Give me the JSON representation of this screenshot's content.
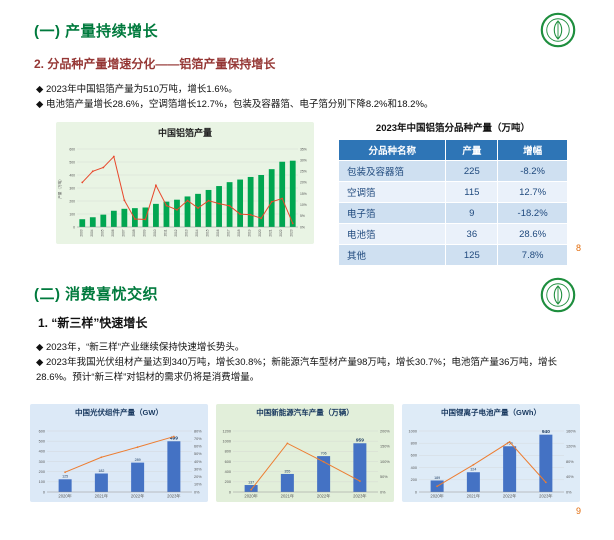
{
  "slide1": {
    "title": "(一) 产量持续增长",
    "subtitle": "2. 分品种产量增速分化——铝箔产量保持增长",
    "bullets": [
      "◆ 2023年中国铝箔产量为510万吨，增长1.6%。",
      "◆ 电池箔产量增长28.6%，空调箔增长12.7%，包装及容器箔、电子箔分别下降8.2%和18.2%。"
    ],
    "table": {
      "title": "2023年中国铝箔分品种产量（万吨）",
      "headers": [
        "分品种名称",
        "产量",
        "增幅"
      ],
      "rows": [
        [
          "包装及容器箔",
          "225",
          "-8.2%"
        ],
        [
          "空调箔",
          "115",
          "12.7%"
        ],
        [
          "电子箔",
          "9",
          "-18.2%"
        ],
        [
          "电池箔",
          "36",
          "28.6%"
        ],
        [
          "其他",
          "125",
          "7.8%"
        ]
      ]
    },
    "page_number": "8"
  },
  "slide2": {
    "title": "(二) 消费喜忧交织",
    "subtitle": "1. “新三样”快速增长",
    "bullets": [
      "◆ 2023年，“新三样”产业继续保持快速增长势头。",
      "◆ 2023年我国光伏组材产量达到340万吨，增长30.8%；新能源汽车型材产量98万吨，增长30.7%；电池箔产量36万吨，增长28.6%。预计“新三样”对铝材的需求仍将是消费增量。"
    ],
    "page_number": "9"
  },
  "chart_data": [
    {
      "type": "bar",
      "title": "中国铝箔产量",
      "categories": [
        "2003",
        "2004",
        "2005",
        "2006",
        "2007",
        "2008",
        "2009",
        "2010",
        "2011",
        "2012",
        "2013",
        "2014",
        "2015",
        "2016",
        "2017",
        "2018",
        "2019",
        "2020",
        "2021",
        "2022",
        "2023"
      ],
      "series": [
        {
          "name": "产量",
          "type": "bar",
          "values": [
            60,
            75,
            95,
            125,
            140,
            145,
            150,
            178,
            195,
            210,
            235,
            255,
            285,
            315,
            345,
            365,
            385,
            400,
            445,
            502,
            510
          ]
        },
        {
          "name": "增速",
          "type": "line",
          "values": [
            20,
            25,
            26.7,
            31.6,
            12,
            3.6,
            3.4,
            18.7,
            9.6,
            7.7,
            11.9,
            8.5,
            11.8,
            10.5,
            9.5,
            5.8,
            5.5,
            3.9,
            11.3,
            12.8,
            1.6
          ]
        }
      ],
      "ylabel_left": "产量（万吨）",
      "left_axis": {
        "min": 0,
        "max": 600,
        "step": 100
      },
      "right_axis": {
        "min": 0,
        "max": 35,
        "step": 5
      },
      "rotate_x_labels": true,
      "show_bar_labels": false,
      "bar_color": "#00A651",
      "line_color": "#E8482C",
      "bg_color": "#E9F4E4",
      "legend_position": "none",
      "grid": true
    },
    {
      "type": "bar",
      "title": "中国光伏组件产量（GW）",
      "categories": [
        "2020年",
        "2021年",
        "2022年",
        "2023年"
      ],
      "series": [
        {
          "name": "产量",
          "type": "bar",
          "values": [
            125,
            182,
            289,
            499
          ]
        },
        {
          "name": "增速",
          "type": "line",
          "values": [
            26,
            45.6,
            58.8,
            72.7
          ]
        }
      ],
      "left_axis": {
        "min": 0,
        "max": 600,
        "step": 100
      },
      "right_axis": {
        "min": 0,
        "max": 80,
        "step": 10
      },
      "rotate_x_labels": false,
      "show_bar_labels": true,
      "bar_color": "#4472C4",
      "line_color": "#ED7D31",
      "bg_color": "#DCE9F7",
      "legend_position": "none",
      "grid": true
    },
    {
      "type": "bar",
      "title": "中国新能源汽车产量（万辆）",
      "categories": [
        "2020年",
        "2021年",
        "2022年",
        "2023年"
      ],
      "series": [
        {
          "name": "产量",
          "type": "bar",
          "values": [
            137,
            355,
            706,
            959
          ]
        },
        {
          "name": "增速",
          "type": "line",
          "values": [
            7.5,
            159.5,
            99.1,
            35.8
          ]
        }
      ],
      "left_axis": {
        "min": 0,
        "max": 1200,
        "step": 200
      },
      "right_axis": {
        "min": 0,
        "max": 200,
        "step": 50
      },
      "rotate_x_labels": false,
      "show_bar_labels": true,
      "bar_color": "#4472C4",
      "line_color": "#ED7D31",
      "bg_color": "#E2EFDA",
      "legend_position": "none",
      "grid": true
    },
    {
      "type": "bar",
      "title": "中国锂离子电池产量（GWh）",
      "categories": [
        "2020年",
        "2021年",
        "2022年",
        "2023年"
      ],
      "series": [
        {
          "name": "产量",
          "type": "bar",
          "values": [
            189,
            324,
            750,
            940
          ]
        },
        {
          "name": "增速",
          "type": "line",
          "values": [
            15,
            71.4,
            131.5,
            25.3
          ]
        }
      ],
      "left_axis": {
        "min": 0,
        "max": 1000,
        "step": 200
      },
      "right_axis": {
        "min": 0,
        "max": 160,
        "step": 40
      },
      "rotate_x_labels": false,
      "show_bar_labels": true,
      "bar_color": "#4472C4",
      "line_color": "#ED7D31",
      "bg_color": "#DEEBF7",
      "legend_position": "none",
      "grid": true
    }
  ]
}
